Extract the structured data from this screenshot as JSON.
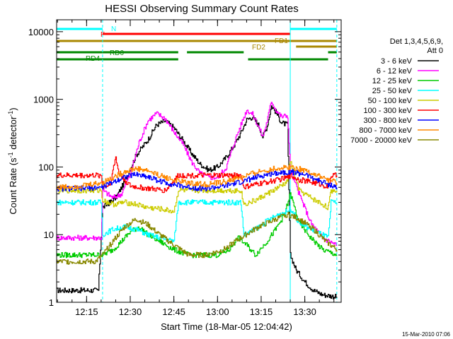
{
  "title": "HESSI Observing Summary Count Rates",
  "xlabel": "Start Time (18-Mar-05 12:04:42)",
  "footer": "15-Mar-2010 07:06",
  "legend": {
    "header1": "Det 1,3,4,5,6,9,",
    "header2": "Att 0"
  },
  "flags": [
    {
      "name": "N",
      "color": "#00ffff",
      "start": "12:04:42",
      "end": "12:20:30"
    },
    {
      "name": "N",
      "color": "#00ffff",
      "start": "13:25:00",
      "end": "13:41:00"
    },
    {
      "name": "F",
      "color": "#ff0000",
      "start": "12:20:30",
      "end": "13:25:00"
    },
    {
      "name": "FD1",
      "color": "#aa8800",
      "start": "12:04:42",
      "end": "13:41:00"
    },
    {
      "name": "FD2",
      "color": "#aa8800",
      "start": "13:27:00",
      "end": "13:41:00"
    },
    {
      "name": "RD0",
      "color": "#008800",
      "start": "12:04:42",
      "end": "12:20:30"
    },
    {
      "name": "RD0",
      "color": "#008800",
      "start": "12:20:30",
      "end": "12:46:30"
    },
    {
      "name": "RD0",
      "color": "#008800",
      "start": "12:49:30",
      "end": "13:09:00"
    },
    {
      "name": "RD0",
      "color": "#008800",
      "start": "13:38:00",
      "end": "13:41:00"
    },
    {
      "name": "RD4",
      "color": "#008800",
      "start": "12:04:42",
      "end": "12:20:30"
    },
    {
      "name": "RD4",
      "color": "#008800",
      "start": "12:20:30",
      "end": "12:46:30"
    },
    {
      "name": "RD4",
      "color": "#008800",
      "start": "13:10:30",
      "end": "13:38:00"
    }
  ],
  "chart_data": {
    "type": "line",
    "title": "HESSI Observing Summary Count Rates",
    "xlabel": "Start Time (18-Mar-05 12:04:42)",
    "ylabel": "Count Rate (s⁻¹ detector⁻¹)",
    "ylabel_main": "Count Rate (s",
    "ylabel_mid": " detector",
    "ylabel_end": ")",
    "ylabel_sup": "-1",
    "yscale": "log",
    "ylim": [
      1,
      15000
    ],
    "xlim": [
      "12:04:42",
      "13:42:30"
    ],
    "xticks": [
      "12:15",
      "12:30",
      "12:45",
      "13:00",
      "13:15",
      "13:30"
    ],
    "yticks": [
      "1",
      "10",
      "100",
      "1000",
      "10000"
    ],
    "vlines": [
      {
        "t": "12:04:42",
        "style": "solid"
      },
      {
        "t": "12:20:30",
        "style": "dashed"
      },
      {
        "t": "13:25:00",
        "style": "solid"
      },
      {
        "t": "13:41:00",
        "style": "dashed"
      }
    ],
    "series": [
      {
        "name": "3 - 6 keV",
        "color": "#000000",
        "points": [
          [
            "12:04:42",
            1.5
          ],
          [
            "12:10:00",
            1.5
          ],
          [
            "12:15:00",
            1.5
          ],
          [
            "12:19:00",
            1.5
          ],
          [
            "12:20:30",
            25
          ],
          [
            "12:25:00",
            35
          ],
          [
            "12:28:00",
            60
          ],
          [
            "12:32:00",
            150
          ],
          [
            "12:36:00",
            250
          ],
          [
            "12:39:00",
            420
          ],
          [
            "12:42:00",
            480
          ],
          [
            "12:45:00",
            380
          ],
          [
            "12:48:00",
            250
          ],
          [
            "12:51:00",
            160
          ],
          [
            "12:54:00",
            110
          ],
          [
            "12:57:00",
            90
          ],
          [
            "13:00:00",
            100
          ],
          [
            "13:03:00",
            140
          ],
          [
            "13:06:00",
            220
          ],
          [
            "13:08:00",
            320
          ],
          [
            "13:10:00",
            500
          ],
          [
            "13:12:00",
            550
          ],
          [
            "13:14:00",
            420
          ],
          [
            "13:15:30",
            280
          ],
          [
            "13:17:00",
            400
          ],
          [
            "13:18:30",
            800
          ],
          [
            "13:20:00",
            650
          ],
          [
            "13:22:00",
            450
          ],
          [
            "13:24:00",
            420
          ],
          [
            "13:25:00",
            5
          ],
          [
            "13:27:00",
            3
          ],
          [
            "13:30:00",
            2
          ],
          [
            "13:33:00",
            1.5
          ],
          [
            "13:36:00",
            1.3
          ],
          [
            "13:41:00",
            1.2
          ]
        ]
      },
      {
        "name": "6 - 12 keV",
        "color": "#ff00ff",
        "points": [
          [
            "12:04:42",
            9
          ],
          [
            "12:15:00",
            9
          ],
          [
            "12:20:00",
            9
          ],
          [
            "12:20:30",
            45
          ],
          [
            "12:24:00",
            35
          ],
          [
            "12:27:00",
            40
          ],
          [
            "12:30:00",
            80
          ],
          [
            "12:33:00",
            230
          ],
          [
            "12:36:00",
            480
          ],
          [
            "12:39:00",
            620
          ],
          [
            "12:42:00",
            520
          ],
          [
            "12:45:00",
            330
          ],
          [
            "12:48:00",
            220
          ],
          [
            "12:51:00",
            120
          ],
          [
            "12:54:00",
            80
          ],
          [
            "12:57:00",
            70
          ],
          [
            "13:00:00",
            70
          ],
          [
            "13:03:00",
            100
          ],
          [
            "13:06:00",
            250
          ],
          [
            "13:08:00",
            420
          ],
          [
            "13:10:00",
            700
          ],
          [
            "13:12:00",
            600
          ],
          [
            "13:14:00",
            400
          ],
          [
            "13:15:30",
            280
          ],
          [
            "13:17:00",
            480
          ],
          [
            "13:18:30",
            950
          ],
          [
            "13:20:00",
            700
          ],
          [
            "13:22:00",
            550
          ],
          [
            "13:24:00",
            580
          ],
          [
            "13:25:00",
            90
          ],
          [
            "13:28:00",
            40
          ],
          [
            "13:32:00",
            15
          ],
          [
            "13:36:00",
            9
          ],
          [
            "13:41:00",
            7
          ]
        ]
      },
      {
        "name": "12 - 25 keV",
        "color": "#00cc00",
        "points": [
          [
            "12:04:42",
            5
          ],
          [
            "12:15:00",
            5
          ],
          [
            "12:20:00",
            5
          ],
          [
            "12:20:30",
            5
          ],
          [
            "12:24:00",
            6
          ],
          [
            "12:27:00",
            8
          ],
          [
            "12:30:00",
            11
          ],
          [
            "12:33:00",
            13
          ],
          [
            "12:36:00",
            10
          ],
          [
            "12:40:00",
            8
          ],
          [
            "12:45:00",
            6
          ],
          [
            "12:50:00",
            5
          ],
          [
            "12:55:00",
            5
          ],
          [
            "13:00:00",
            5
          ],
          [
            "13:04:00",
            6
          ],
          [
            "13:07:00",
            9
          ],
          [
            "13:10:00",
            7
          ],
          [
            "13:13:00",
            5
          ],
          [
            "13:17:00",
            8
          ],
          [
            "13:20:00",
            12
          ],
          [
            "13:23:00",
            20
          ],
          [
            "13:25:00",
            40
          ],
          [
            "13:28:00",
            15
          ],
          [
            "13:32:00",
            9
          ],
          [
            "13:36:00",
            6
          ],
          [
            "13:41:00",
            5
          ]
        ]
      },
      {
        "name": "25 - 50 keV",
        "color": "#00ffff",
        "points": [
          [
            "12:04:42",
            30
          ],
          [
            "12:12:00",
            30
          ],
          [
            "12:20:00",
            30
          ],
          [
            "12:20:30",
            10
          ],
          [
            "12:24:00",
            12
          ],
          [
            "12:28:00",
            13
          ],
          [
            "12:32:00",
            12
          ],
          [
            "12:36:00",
            10
          ],
          [
            "12:40:00",
            9
          ],
          [
            "12:45:00",
            8
          ],
          [
            "12:46:30",
            30
          ],
          [
            "12:52:00",
            30
          ],
          [
            "13:00:00",
            30
          ],
          [
            "13:08:00",
            30
          ],
          [
            "13:09:00",
            10
          ],
          [
            "13:13:00",
            12
          ],
          [
            "13:17:00",
            16
          ],
          [
            "13:21:00",
            20
          ],
          [
            "13:24:00",
            22
          ],
          [
            "13:25:00",
            25
          ],
          [
            "13:28:00",
            15
          ],
          [
            "13:32:00",
            12
          ],
          [
            "13:36:00",
            10
          ],
          [
            "13:38:00",
            9
          ],
          [
            "13:39:00",
            30
          ],
          [
            "13:41:00",
            30
          ]
        ]
      },
      {
        "name": "50 - 100 keV",
        "color": "#cccc00",
        "points": [
          [
            "12:04:42",
            45
          ],
          [
            "12:12:00",
            45
          ],
          [
            "12:20:00",
            45
          ],
          [
            "12:20:30",
            32
          ],
          [
            "12:24:00",
            28
          ],
          [
            "12:28:00",
            30
          ],
          [
            "12:32:00",
            28
          ],
          [
            "12:36:00",
            25
          ],
          [
            "12:40:00",
            24
          ],
          [
            "12:45:00",
            22
          ],
          [
            "12:46:30",
            45
          ],
          [
            "12:52:00",
            45
          ],
          [
            "13:00:00",
            45
          ],
          [
            "13:08:00",
            45
          ],
          [
            "13:09:00",
            28
          ],
          [
            "13:13:00",
            32
          ],
          [
            "13:17:00",
            40
          ],
          [
            "13:21:00",
            50
          ],
          [
            "13:24:00",
            60
          ],
          [
            "13:25:00",
            120
          ],
          [
            "13:28:00",
            45
          ],
          [
            "13:32:00",
            35
          ],
          [
            "13:36:00",
            28
          ],
          [
            "13:38:00",
            25
          ],
          [
            "13:39:00",
            45
          ],
          [
            "13:41:00",
            45
          ]
        ]
      },
      {
        "name": "100 - 300 keV",
        "color": "#ff0000",
        "points": [
          [
            "12:04:42",
            75
          ],
          [
            "12:12:00",
            75
          ],
          [
            "12:20:00",
            75
          ],
          [
            "12:20:30",
            50
          ],
          [
            "12:23:00",
            55
          ],
          [
            "12:25:00",
            140
          ],
          [
            "12:26:00",
            80
          ],
          [
            "12:30:00",
            52
          ],
          [
            "12:36:00",
            48
          ],
          [
            "12:42:00",
            45
          ],
          [
            "12:46:30",
            75
          ],
          [
            "12:52:00",
            75
          ],
          [
            "13:00:00",
            75
          ],
          [
            "13:08:00",
            75
          ],
          [
            "13:09:00",
            50
          ],
          [
            "13:13:00",
            55
          ],
          [
            "13:17:00",
            60
          ],
          [
            "13:21:00",
            65
          ],
          [
            "13:24:00",
            70
          ],
          [
            "13:25:00",
            75
          ],
          [
            "13:28:00",
            65
          ],
          [
            "13:32:00",
            60
          ],
          [
            "13:36:00",
            55
          ],
          [
            "13:38:00",
            50
          ],
          [
            "13:39:00",
            75
          ],
          [
            "13:41:00",
            75
          ]
        ]
      },
      {
        "name": "300 - 800 keV",
        "color": "#0000ff",
        "points": [
          [
            "12:04:42",
            48
          ],
          [
            "12:12:00",
            48
          ],
          [
            "12:20:00",
            50
          ],
          [
            "12:24:00",
            60
          ],
          [
            "12:28:00",
            72
          ],
          [
            "12:32:00",
            78
          ],
          [
            "12:36:00",
            72
          ],
          [
            "12:40:00",
            62
          ],
          [
            "12:45:00",
            55
          ],
          [
            "12:50:00",
            50
          ],
          [
            "12:56:00",
            48
          ],
          [
            "13:02:00",
            52
          ],
          [
            "13:08:00",
            60
          ],
          [
            "13:14:00",
            72
          ],
          [
            "13:20:00",
            82
          ],
          [
            "13:25:00",
            85
          ],
          [
            "13:30:00",
            78
          ],
          [
            "13:35:00",
            62
          ],
          [
            "13:41:00",
            50
          ]
        ]
      },
      {
        "name": "800 - 7000 keV",
        "color": "#ff8800",
        "points": [
          [
            "12:04:42",
            50
          ],
          [
            "12:12:00",
            52
          ],
          [
            "12:20:00",
            58
          ],
          [
            "12:24:00",
            70
          ],
          [
            "12:28:00",
            85
          ],
          [
            "12:32:00",
            95
          ],
          [
            "12:36:00",
            88
          ],
          [
            "12:40:00",
            75
          ],
          [
            "12:45:00",
            64
          ],
          [
            "12:50:00",
            58
          ],
          [
            "12:56:00",
            55
          ],
          [
            "13:02:00",
            60
          ],
          [
            "13:08:00",
            70
          ],
          [
            "13:14:00",
            85
          ],
          [
            "13:20:00",
            95
          ],
          [
            "13:25:00",
            100
          ],
          [
            "13:30:00",
            90
          ],
          [
            "13:35:00",
            72
          ],
          [
            "13:41:00",
            58
          ]
        ]
      },
      {
        "name": "7000 - 20000 keV",
        "color": "#888800",
        "points": [
          [
            "12:04:42",
            4
          ],
          [
            "12:12:00",
            4
          ],
          [
            "12:18:00",
            4
          ],
          [
            "12:20:30",
            5
          ],
          [
            "12:24:00",
            8
          ],
          [
            "12:28:00",
            13
          ],
          [
            "12:32:00",
            17
          ],
          [
            "12:36:00",
            14
          ],
          [
            "12:40:00",
            10
          ],
          [
            "12:45:00",
            7
          ],
          [
            "12:50:00",
            5
          ],
          [
            "12:56:00",
            5
          ],
          [
            "13:02:00",
            6
          ],
          [
            "13:08:00",
            9
          ],
          [
            "13:14:00",
            13
          ],
          [
            "13:20:00",
            17
          ],
          [
            "13:24:00",
            20
          ],
          [
            "13:28:00",
            17
          ],
          [
            "13:33:00",
            12
          ],
          [
            "13:37:00",
            8
          ],
          [
            "13:41:00",
            6
          ]
        ]
      }
    ]
  }
}
